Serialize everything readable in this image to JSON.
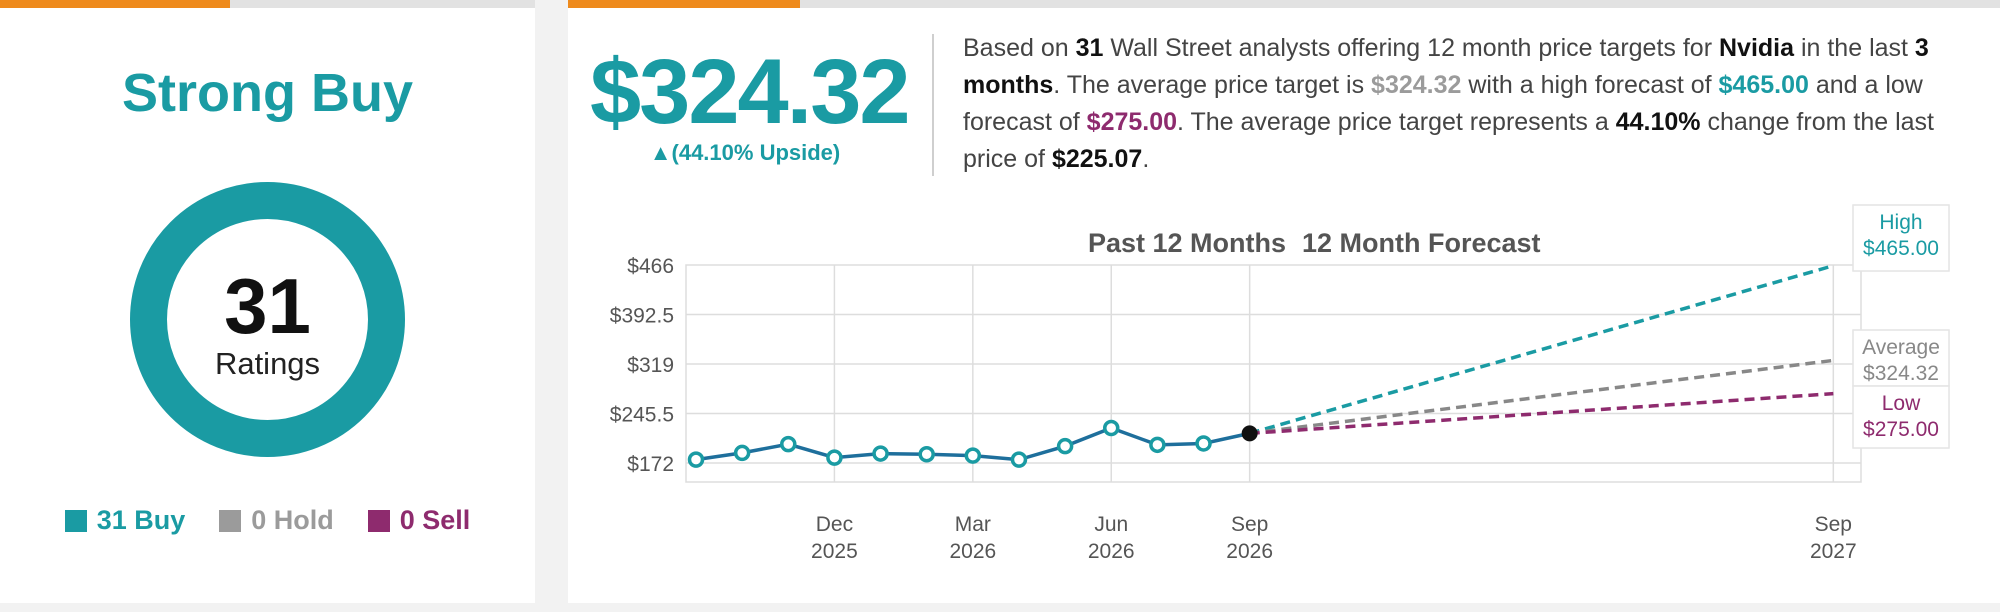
{
  "rating": {
    "consensus": "Strong Buy",
    "count": "31",
    "count_label": "Ratings",
    "legend": [
      {
        "label": "31 Buy",
        "color": "#1a9ba3"
      },
      {
        "label": "0 Hold",
        "color": "#9b9b9b"
      },
      {
        "label": "0 Sell",
        "color": "#8e2b6e"
      }
    ]
  },
  "forecast": {
    "price": "$324.32",
    "upside": "▲(44.10% Upside)",
    "summary": {
      "t1": "Based on ",
      "analysts": "31",
      "t2": " Wall Street analysts offering 12 month price targets for ",
      "company": "Nvidia",
      "t3": " in the last ",
      "period": "3 months",
      "t4": ". The average price target is ",
      "avg": "$324.32",
      "t5": " with a high forecast of ",
      "high": "$465.00",
      "t6": " and a low forecast of ",
      "low": "$275.00",
      "t7": ". The average price target represents a ",
      "change": "44.10%",
      "t8": " change from the last price of ",
      "last": "$225.07",
      "t9": "."
    }
  },
  "chart_data": {
    "type": "line",
    "title_past": "Past 12 Months",
    "title_forecast": "12 Month Forecast",
    "y_ticks": [
      "$466",
      "$392.5",
      "$319",
      "$245.5",
      "$172"
    ],
    "ylim": [
      172,
      466
    ],
    "y_tick_values": [
      466,
      392.5,
      319,
      245.5,
      172
    ],
    "x_ticks": [
      {
        "m": "Dec",
        "y": "2025",
        "t": 3
      },
      {
        "m": "Mar",
        "y": "2026",
        "t": 6
      },
      {
        "m": "Jun",
        "y": "2026",
        "t": 9
      },
      {
        "m": "Sep",
        "y": "2026",
        "t": 12
      },
      {
        "m": "Sep",
        "y": "2027",
        "t": 24.65
      }
    ],
    "history": [
      {
        "t": 0,
        "v": 177
      },
      {
        "t": 1,
        "v": 187
      },
      {
        "t": 2,
        "v": 200
      },
      {
        "t": 3,
        "v": 180
      },
      {
        "t": 4,
        "v": 186
      },
      {
        "t": 5,
        "v": 185
      },
      {
        "t": 6,
        "v": 183
      },
      {
        "t": 7,
        "v": 177
      },
      {
        "t": 8,
        "v": 197
      },
      {
        "t": 9,
        "v": 224
      },
      {
        "t": 10,
        "v": 199
      },
      {
        "t": 11,
        "v": 201
      },
      {
        "t": 12,
        "v": 216
      }
    ],
    "forecasts": [
      {
        "name": "High",
        "value_label": "$465.00",
        "value": 465,
        "color": "#1a9ba3"
      },
      {
        "name": "Average",
        "value_label": "$324.32",
        "value": 324.32,
        "color": "#888888"
      },
      {
        "name": "Low",
        "value_label": "$275.00",
        "value": 275,
        "color": "#8e2b6e"
      }
    ],
    "colors": {
      "history": "#1e6f9c",
      "grid": "#dddddd"
    }
  }
}
